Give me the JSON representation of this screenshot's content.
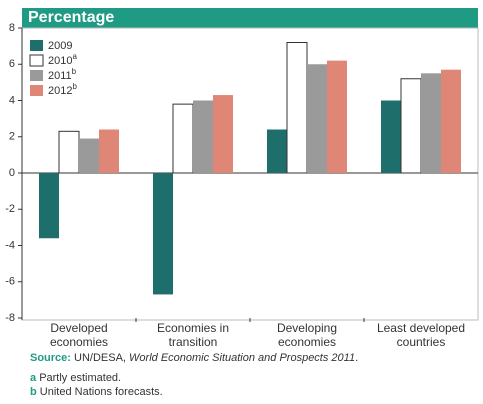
{
  "chart_data": {
    "type": "bar",
    "title": "Percentage",
    "categories": [
      "Developed economies",
      "Economies in transition",
      "Developing economies",
      "Least developed countries"
    ],
    "series": [
      {
        "name": "2009",
        "color": "#1e6e6c",
        "values": [
          -3.6,
          -6.7,
          2.4,
          4.0
        ]
      },
      {
        "name": "2010",
        "footnote": "a",
        "color": "#ffffff",
        "values": [
          2.3,
          3.8,
          7.2,
          5.2
        ]
      },
      {
        "name": "2011",
        "footnote": "b",
        "color": "#9a9a9a",
        "values": [
          1.9,
          4.0,
          6.0,
          5.5
        ]
      },
      {
        "name": "2012",
        "footnote": "b",
        "color": "#df8677",
        "values": [
          2.4,
          4.3,
          6.2,
          5.7
        ]
      }
    ],
    "ylim": [
      -8,
      8
    ],
    "yticks": [
      -8,
      -6,
      -4,
      -2,
      0,
      2,
      4,
      6,
      8
    ],
    "grid": false,
    "legend": "upper left",
    "source_label": "Source:",
    "source_text": "UN/DESA, ",
    "source_title": "World Economic Situation and Prospects 2011",
    "source_end": ".",
    "notes": [
      {
        "mark": "a",
        "text": "Partly estimated."
      },
      {
        "mark": "b",
        "text": "United Nations forecasts."
      }
    ]
  }
}
